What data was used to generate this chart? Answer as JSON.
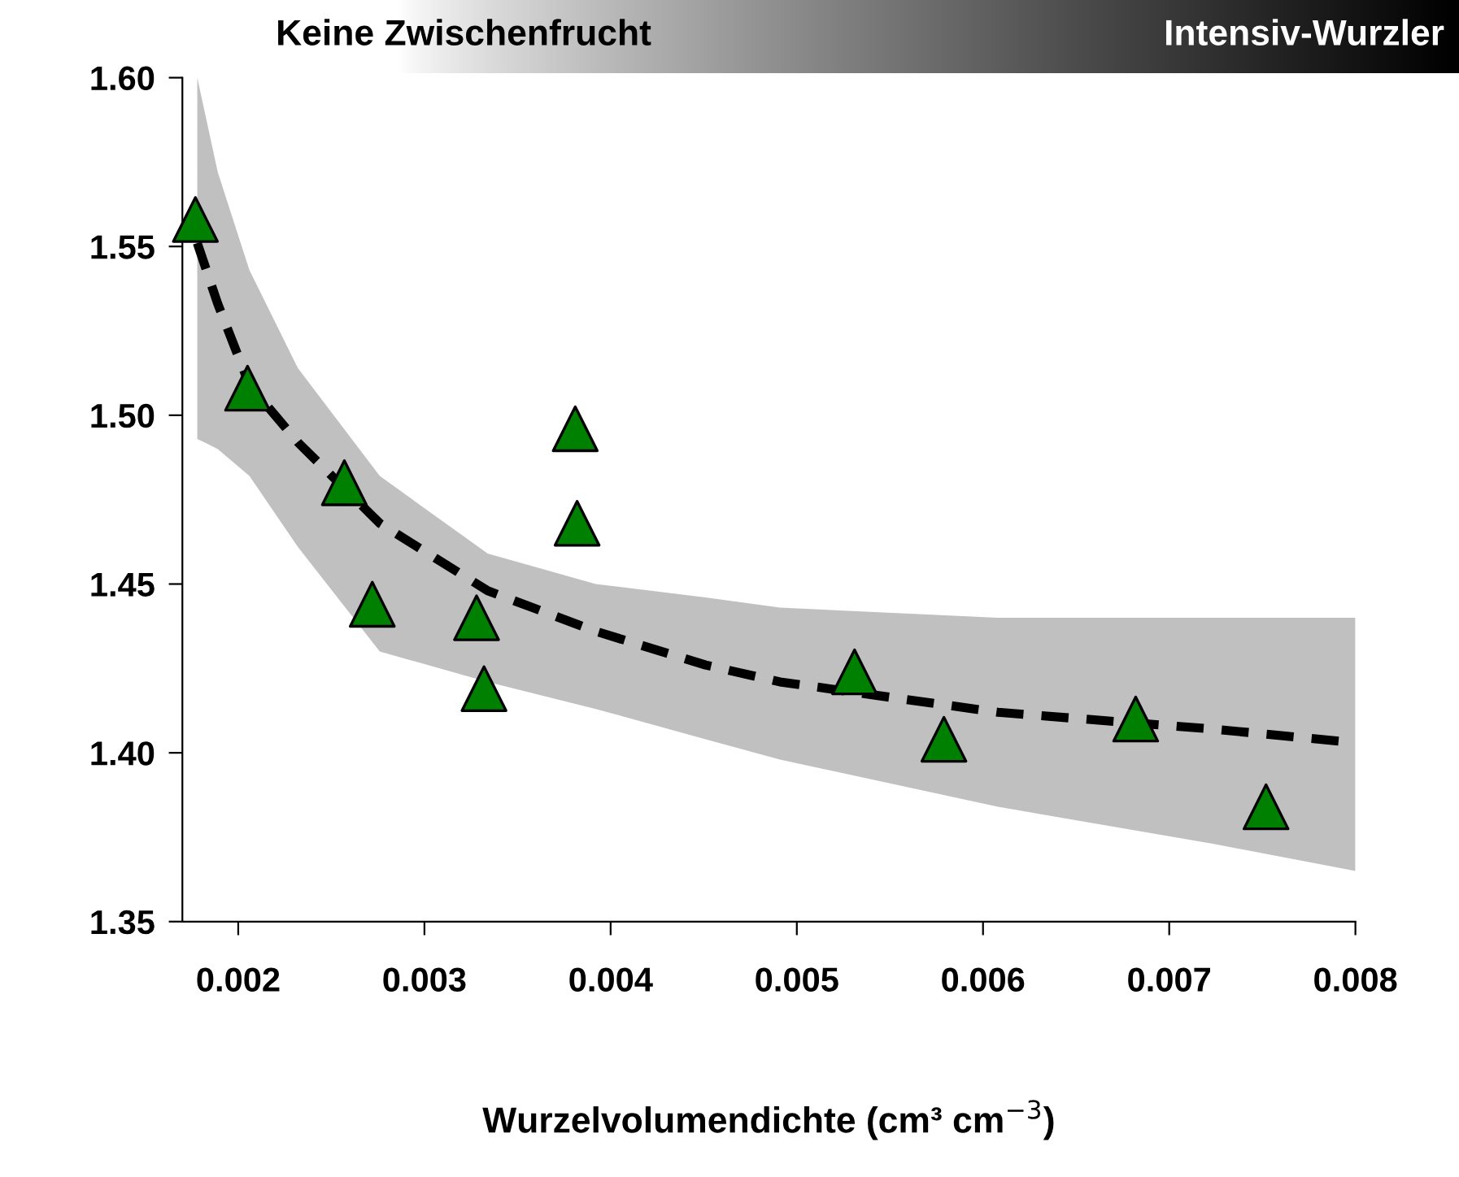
{
  "chart_data": {
    "type": "scatter",
    "xlabel": "Wurzelvolumendichte (cm³ cm$^{−3}$)",
    "annotations": [
      "Keine Zwischenfrucht",
      "Intensiv-Wurzler"
    ],
    "xlim": [
      0.0017,
      0.008
    ],
    "ylim": [
      1.35,
      1.6
    ],
    "xticks": [
      0.002,
      0.003,
      0.004,
      0.005,
      0.006,
      0.007,
      0.008
    ],
    "yticks": [
      1.35,
      {
        "value": 1.4,
        "label": "1.40"
      },
      1.45,
      {
        "value": 1.5,
        "label": "1.50"
      },
      1.55,
      {
        "value": 1.6,
        "label": "1.60"
      }
    ],
    "grid": false,
    "legend": false,
    "series": [
      {
        "type": "line",
        "color": "#000000",
        "line_style": "dashed",
        "marker": "none",
        "x": [
          0.00178,
          0.00189,
          0.00206,
          0.00232,
          0.00276,
          0.00334,
          0.00392,
          0.00451,
          0.00491,
          0.00608,
          0.00724,
          0.008
        ],
        "values": [
          1.551,
          1.533,
          1.509,
          1.492,
          1.468,
          1.448,
          1.436,
          1.426,
          1.421,
          1.412,
          1.407,
          1.403
        ],
        "lower": [
          1.493,
          1.49,
          1.482,
          1.461,
          1.43,
          1.421,
          1.413,
          1.404,
          1.398,
          1.384,
          1.373,
          1.365
        ],
        "upper": [
          1.6,
          1.572,
          1.543,
          1.514,
          1.482,
          1.459,
          1.45,
          1.446,
          1.443,
          1.44,
          1.44,
          1.44
        ]
      },
      {
        "color": "#008000",
        "marker": "triangle",
        "x": [
          0.00177,
          0.00205,
          0.00257,
          0.00272,
          0.00328,
          0.00332,
          0.00381,
          0.00382,
          0.00531,
          0.00579,
          0.00682,
          0.00752
        ],
        "values": [
          1.558,
          1.508,
          1.48,
          1.444,
          1.44,
          1.419,
          1.496,
          1.468,
          1.424,
          1.404,
          1.41,
          1.384
        ]
      }
    ]
  }
}
